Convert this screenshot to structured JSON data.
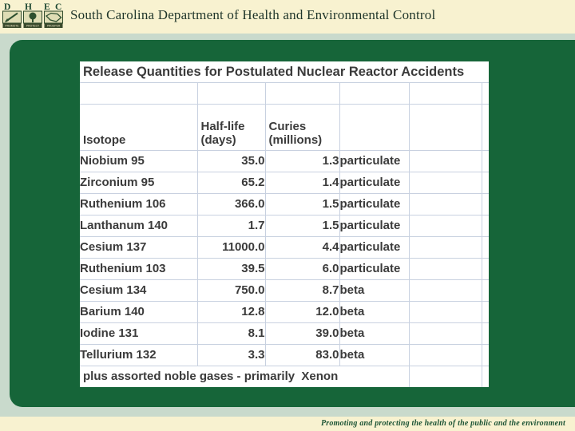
{
  "colors": {
    "cream": "#f8f2d0",
    "sage": "#c9dacc",
    "panel_green": "#166539",
    "gridline": "#c8d1e0",
    "table_text": "#3b3b3b",
    "title_text": "#1f352a",
    "tagline_text": "#1b5334"
  },
  "header": {
    "title": "South Carolina Department of Health and Environmental Control",
    "logo": {
      "letters": [
        "D",
        "H",
        "E",
        "C"
      ],
      "captions": [
        "PROMOTE",
        "PROTECT",
        "PROSPER"
      ]
    }
  },
  "table": {
    "title": "Release Quantities for Postulated Nuclear Reactor Accidents",
    "headers": {
      "isotope": "Isotope",
      "half_life_line1": "Half-life",
      "half_life_line2": "(days)",
      "curies_line1": "Curies",
      "curies_line2": "(millions)"
    },
    "rows": [
      {
        "isotope": "Niobium 95",
        "half_life": "35.0",
        "curies": "1.3",
        "type": "particulate"
      },
      {
        "isotope": "Zirconium 95",
        "half_life": "65.2",
        "curies": "1.4",
        "type": "particulate"
      },
      {
        "isotope": "Ruthenium 106",
        "half_life": "366.0",
        "curies": "1.5",
        "type": "particulate"
      },
      {
        "isotope": "Lanthanum 140",
        "half_life": "1.7",
        "curies": "1.5",
        "type": "particulate"
      },
      {
        "isotope": "Cesium 137",
        "half_life": "11000.0",
        "curies": "4.4",
        "type": "particulate"
      },
      {
        "isotope": "Ruthenium 103",
        "half_life": "39.5",
        "curies": "6.0",
        "type": "particulate"
      },
      {
        "isotope": "Cesium 134",
        "half_life": "750.0",
        "curies": "8.7",
        "type": "beta"
      },
      {
        "isotope": "Barium 140",
        "half_life": "12.8",
        "curies": "12.0",
        "type": "beta"
      },
      {
        "isotope": "Iodine 131",
        "half_life": "8.1",
        "curies": "39.0",
        "type": "beta"
      },
      {
        "isotope": "Tellurium 132",
        "half_life": "3.3",
        "curies": "83.0",
        "type": "beta"
      }
    ],
    "footnote": "plus assorted noble gases - primarily  Xenon"
  },
  "footer": {
    "tagline": "Promoting and protecting the health of the public and the environment"
  }
}
